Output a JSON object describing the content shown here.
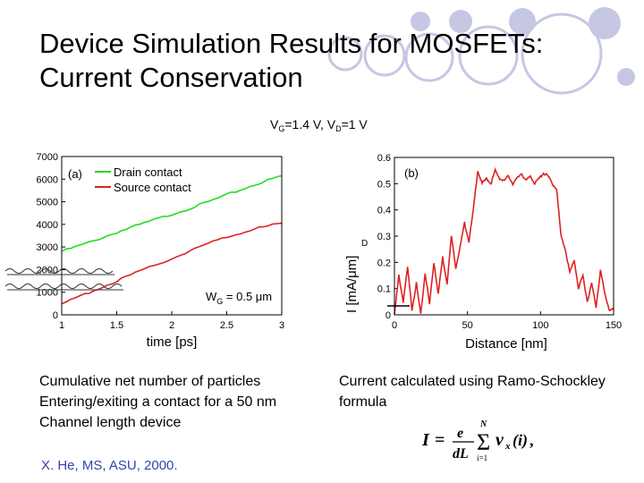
{
  "slide": {
    "title_line1": "Device Simulation Results for MOSFETs:",
    "title_line2": "Current Conservation",
    "conditions": {
      "vg_prefix": "V",
      "vg_sub": "G",
      "vg_val": "=1.4 V, V",
      "vd_sub": "D",
      "vd_val": "=1 V"
    },
    "caption_left": [
      "Cumulative net number of particles",
      "Entering/exiting a contact for a 50 nm",
      "Channel length device"
    ],
    "caption_right": [
      "Current calculated using Ramo-Schockley",
      "formula"
    ],
    "credit": "X. He, MS, ASU, 2000.",
    "formula": {
      "lhs": "I",
      "eq": "=",
      "num": "e",
      "den": "dL",
      "sum_top": "N",
      "sum_bot": "i=1",
      "term": "v",
      "term_sub": "x",
      "term_arg": "(i)",
      "tail": ","
    },
    "colors": {
      "bubble": "#c5c7e3",
      "green": "#22dd22",
      "red": "#dd2222",
      "credit": "#3344aa"
    }
  },
  "chart_data": [
    {
      "type": "line",
      "panel_label": "(a)",
      "xlabel": "time [ps]",
      "ylabel": "",
      "xlim": [
        1,
        3
      ],
      "ylim": [
        0,
        7000
      ],
      "xticks": [
        "1",
        "1.5",
        "2",
        "2.5",
        "3"
      ],
      "yticks": [
        "0",
        "1000",
        "2000",
        "3000",
        "4000",
        "5000",
        "6000",
        "7000"
      ],
      "annotation": {
        "main": "W",
        "sub": "G",
        "rest": " = 0.5 μm"
      },
      "legend_position": "top-left",
      "series": [
        {
          "name": "Drain contact",
          "color": "#22dd22",
          "x": [
            1.0,
            1.25,
            1.5,
            1.75,
            2.0,
            2.25,
            2.5,
            2.75,
            3.0
          ],
          "y": [
            2800,
            3200,
            3650,
            4050,
            4450,
            4850,
            5300,
            5750,
            6150
          ]
        },
        {
          "name": "Source contact",
          "color": "#dd2222",
          "x": [
            1.0,
            1.25,
            1.5,
            1.75,
            2.0,
            2.25,
            2.5,
            2.75,
            3.0
          ],
          "y": [
            450,
            1000,
            1500,
            2000,
            2500,
            3000,
            3450,
            3800,
            4050
          ]
        }
      ]
    },
    {
      "type": "line",
      "panel_label": "(b)",
      "xlabel": "Distance [nm]",
      "ylabel": "I  [mA/μm]",
      "ylabel_sub": "D",
      "xlim": [
        0,
        150
      ],
      "ylim": [
        0,
        0.6
      ],
      "xticks": [
        "0",
        "50",
        "100",
        "150"
      ],
      "yticks": [
        "0",
        "0.1",
        "0.2",
        "0.3",
        "0.4",
        "0.5",
        "0.6"
      ],
      "series": [
        {
          "color": "#dd2222",
          "x": [
            0,
            3,
            6,
            9,
            12,
            15,
            18,
            21,
            24,
            27,
            30,
            33,
            36,
            39,
            42,
            45,
            48,
            51,
            54,
            57,
            60,
            63,
            66,
            69,
            72,
            75,
            78,
            81,
            84,
            87,
            90,
            93,
            96,
            99,
            102,
            105,
            108,
            111,
            114,
            117,
            120,
            123,
            126,
            129,
            132,
            135,
            138,
            141,
            144,
            147,
            150
          ],
          "y": [
            0.0,
            0.15,
            0.05,
            0.18,
            0.02,
            0.12,
            0.0,
            0.16,
            0.04,
            0.2,
            0.08,
            0.22,
            0.12,
            0.3,
            0.18,
            0.26,
            0.35,
            0.28,
            0.4,
            0.55,
            0.5,
            0.52,
            0.5,
            0.55,
            0.52,
            0.51,
            0.53,
            0.5,
            0.52,
            0.54,
            0.51,
            0.53,
            0.5,
            0.52,
            0.54,
            0.53,
            0.5,
            0.48,
            0.3,
            0.25,
            0.16,
            0.21,
            0.1,
            0.15,
            0.05,
            0.12,
            0.03,
            0.17,
            0.08,
            0.02,
            0.02
          ]
        }
      ]
    }
  ]
}
